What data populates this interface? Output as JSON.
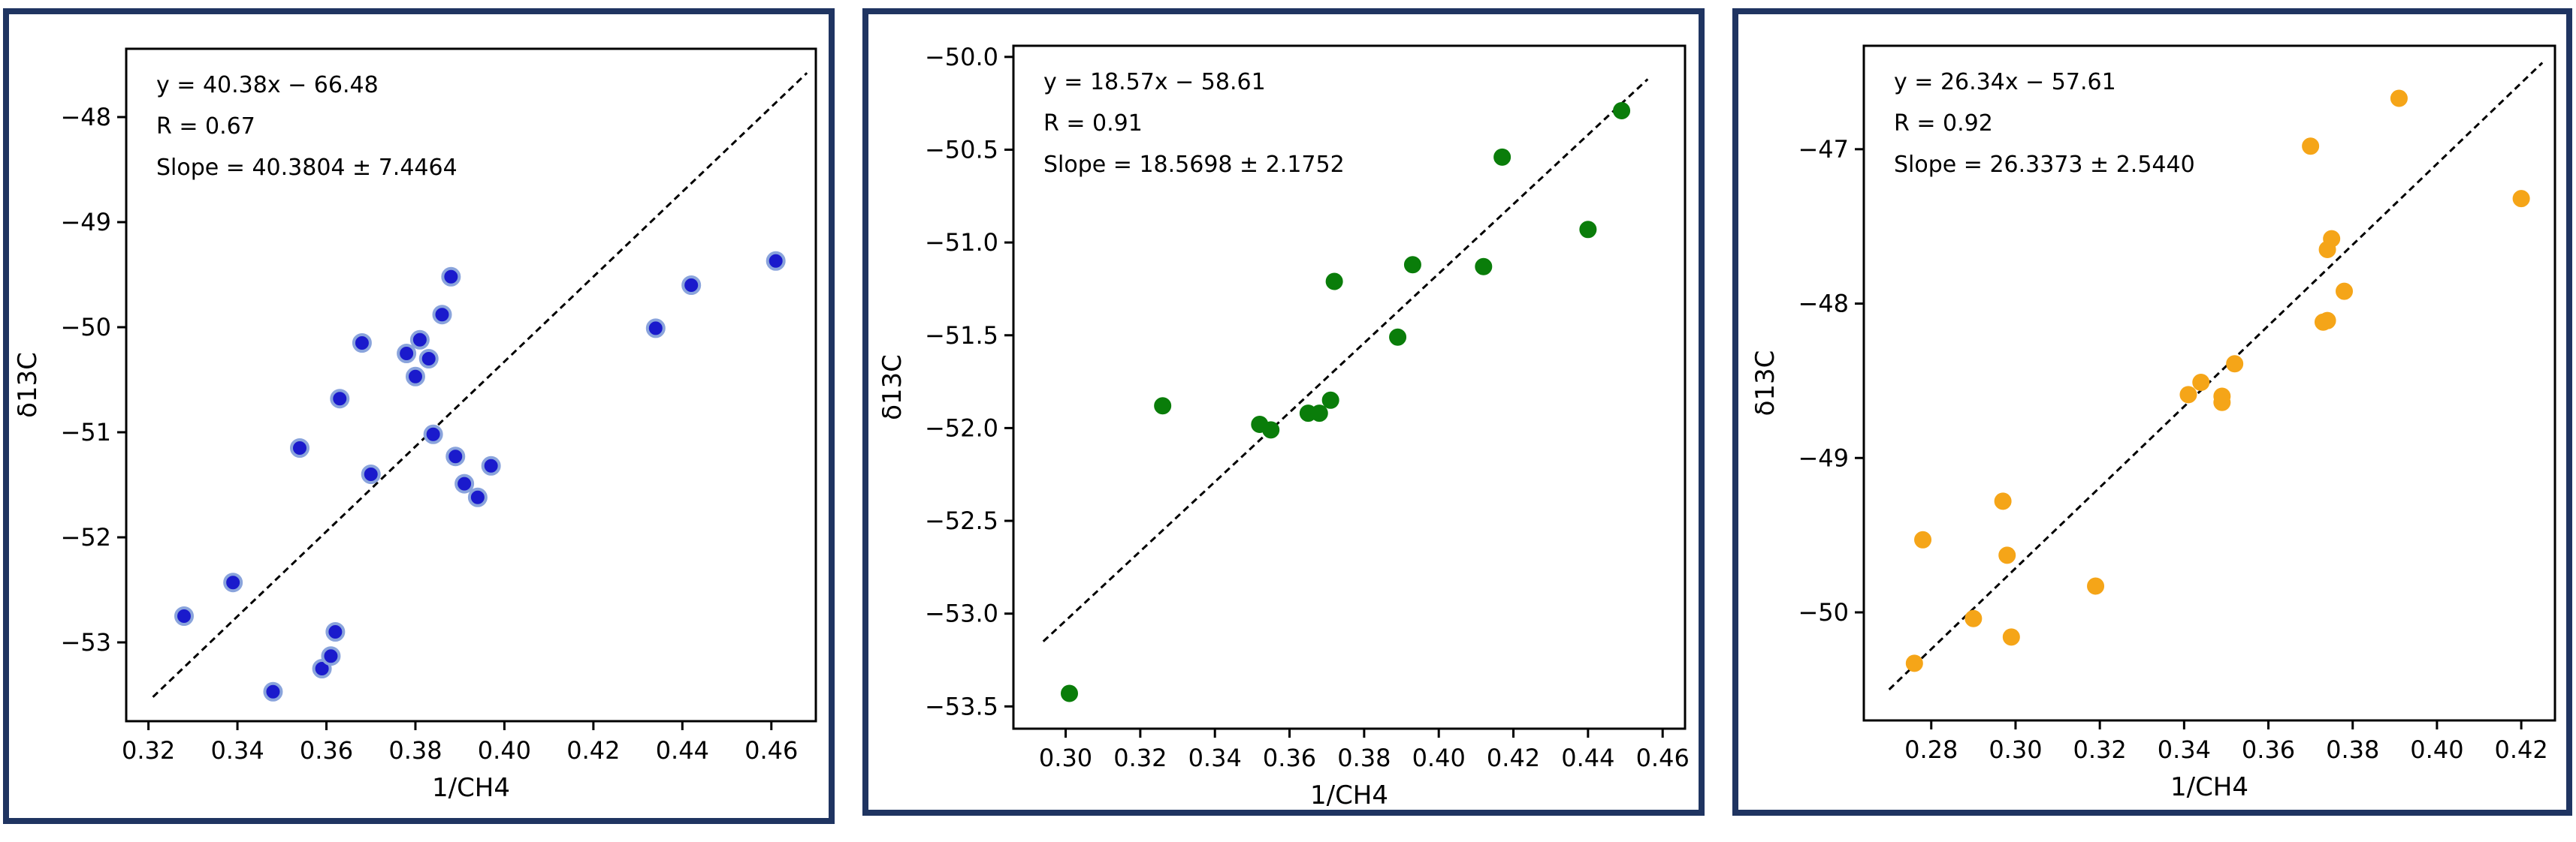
{
  "chart_data": [
    {
      "type": "scatter",
      "xlabel": "1/CH4",
      "ylabel": "δ13C",
      "xlim": [
        0.315,
        0.47
      ],
      "ylim": [
        -53.75,
        -47.35
      ],
      "x_ticks": [
        0.32,
        0.34,
        0.36,
        0.38,
        0.4,
        0.42,
        0.44,
        0.46
      ],
      "x_tick_labels": [
        "0.32",
        "0.34",
        "0.36",
        "0.38",
        "0.40",
        "0.42",
        "0.44",
        "0.46"
      ],
      "y_ticks": [
        -53,
        -52,
        -51,
        -50,
        -49,
        -48
      ],
      "y_tick_labels": [
        "−53",
        "−52",
        "−51",
        "−50",
        "−49",
        "−48"
      ],
      "annotations": [
        "y = 40.38x − 66.48",
        "R = 0.67",
        "Slope = 40.3804 ± 7.4464"
      ],
      "point_color": "#1a1acc",
      "point_edge_color": "#8aa4dc",
      "grid": false,
      "fit_line": {
        "x": [
          0.321,
          0.468
        ],
        "y": [
          -53.52,
          -47.58
        ],
        "style": "dashed",
        "color": "#000000"
      },
      "points": [
        {
          "x": 0.328,
          "y": -52.75
        },
        {
          "x": 0.339,
          "y": -52.43
        },
        {
          "x": 0.348,
          "y": -53.47
        },
        {
          "x": 0.354,
          "y": -51.15
        },
        {
          "x": 0.359,
          "y": -53.25
        },
        {
          "x": 0.361,
          "y": -53.13
        },
        {
          "x": 0.362,
          "y": -52.9
        },
        {
          "x": 0.363,
          "y": -50.68
        },
        {
          "x": 0.368,
          "y": -50.15
        },
        {
          "x": 0.37,
          "y": -51.4
        },
        {
          "x": 0.378,
          "y": -50.25
        },
        {
          "x": 0.38,
          "y": -50.47
        },
        {
          "x": 0.381,
          "y": -50.12
        },
        {
          "x": 0.383,
          "y": -50.3
        },
        {
          "x": 0.384,
          "y": -51.02
        },
        {
          "x": 0.386,
          "y": -49.88
        },
        {
          "x": 0.388,
          "y": -49.52
        },
        {
          "x": 0.389,
          "y": -51.23
        },
        {
          "x": 0.391,
          "y": -51.49
        },
        {
          "x": 0.394,
          "y": -51.62
        },
        {
          "x": 0.397,
          "y": -51.32
        },
        {
          "x": 0.434,
          "y": -50.01
        },
        {
          "x": 0.442,
          "y": -49.6
        },
        {
          "x": 0.461,
          "y": -49.37
        }
      ]
    },
    {
      "type": "scatter",
      "xlabel": "1/CH4",
      "ylabel": "δ13C",
      "xlim": [
        0.286,
        0.466
      ],
      "ylim": [
        -53.62,
        -49.94
      ],
      "x_ticks": [
        0.3,
        0.32,
        0.34,
        0.36,
        0.38,
        0.4,
        0.42,
        0.44,
        0.46
      ],
      "x_tick_labels": [
        "0.30",
        "0.32",
        "0.34",
        "0.36",
        "0.38",
        "0.40",
        "0.42",
        "0.44",
        "0.46"
      ],
      "y_ticks": [
        -53.5,
        -53.0,
        -52.5,
        -52.0,
        -51.5,
        -51.0,
        -50.5,
        -50.0
      ],
      "y_tick_labels": [
        "−53.5",
        "−53.0",
        "−52.5",
        "−52.0",
        "−51.5",
        "−51.0",
        "−50.5",
        "−50.0"
      ],
      "annotations": [
        "y = 18.57x − 58.61",
        "R = 0.91",
        "Slope = 18.5698 ± 2.1752"
      ],
      "point_color": "#0a7d0a",
      "point_edge_color": "#0a7d0a",
      "grid": false,
      "fit_line": {
        "x": [
          0.294,
          0.456
        ],
        "y": [
          -53.15,
          -50.12
        ],
        "style": "dashed",
        "color": "#000000"
      },
      "points": [
        {
          "x": 0.301,
          "y": -53.43
        },
        {
          "x": 0.326,
          "y": -51.88
        },
        {
          "x": 0.352,
          "y": -51.98
        },
        {
          "x": 0.355,
          "y": -52.01
        },
        {
          "x": 0.365,
          "y": -51.92
        },
        {
          "x": 0.368,
          "y": -51.92
        },
        {
          "x": 0.371,
          "y": -51.85
        },
        {
          "x": 0.372,
          "y": -51.21
        },
        {
          "x": 0.389,
          "y": -51.51
        },
        {
          "x": 0.393,
          "y": -51.12
        },
        {
          "x": 0.412,
          "y": -51.13
        },
        {
          "x": 0.417,
          "y": -50.54
        },
        {
          "x": 0.44,
          "y": -50.93
        },
        {
          "x": 0.449,
          "y": -50.29
        }
      ]
    },
    {
      "type": "scatter",
      "xlabel": "1/CH4",
      "ylabel": "δ13C",
      "xlim": [
        0.264,
        0.428
      ],
      "ylim": [
        -50.7,
        -46.33
      ],
      "x_ticks": [
        0.28,
        0.3,
        0.32,
        0.34,
        0.36,
        0.38,
        0.4,
        0.42
      ],
      "x_tick_labels": [
        "0.28",
        "0.30",
        "0.32",
        "0.34",
        "0.36",
        "0.38",
        "0.40",
        "0.42"
      ],
      "y_ticks": [
        -50,
        -49,
        -48,
        -47
      ],
      "y_tick_labels": [
        "−50",
        "−49",
        "−48",
        "−47"
      ],
      "annotations": [
        "y = 26.34x − 57.61",
        "R = 0.92",
        "Slope = 26.3373 ± 2.5440"
      ],
      "point_color": "#f5a518",
      "point_edge_color": "#f5a518",
      "grid": false,
      "fit_line": {
        "x": [
          0.27,
          0.425
        ],
        "y": [
          -50.5,
          -46.44
        ],
        "style": "dashed",
        "color": "#000000"
      },
      "points": [
        {
          "x": 0.276,
          "y": -50.33
        },
        {
          "x": 0.278,
          "y": -49.53
        },
        {
          "x": 0.29,
          "y": -50.04
        },
        {
          "x": 0.297,
          "y": -49.28
        },
        {
          "x": 0.298,
          "y": -49.63
        },
        {
          "x": 0.299,
          "y": -50.16
        },
        {
          "x": 0.319,
          "y": -49.83
        },
        {
          "x": 0.341,
          "y": -48.59
        },
        {
          "x": 0.344,
          "y": -48.51
        },
        {
          "x": 0.349,
          "y": -48.6
        },
        {
          "x": 0.349,
          "y": -48.64
        },
        {
          "x": 0.352,
          "y": -48.39
        },
        {
          "x": 0.37,
          "y": -46.98
        },
        {
          "x": 0.373,
          "y": -48.12
        },
        {
          "x": 0.374,
          "y": -48.11
        },
        {
          "x": 0.374,
          "y": -47.65
        },
        {
          "x": 0.375,
          "y": -47.58
        },
        {
          "x": 0.378,
          "y": -47.92
        },
        {
          "x": 0.391,
          "y": -46.67
        },
        {
          "x": 0.42,
          "y": -47.32
        }
      ]
    }
  ]
}
